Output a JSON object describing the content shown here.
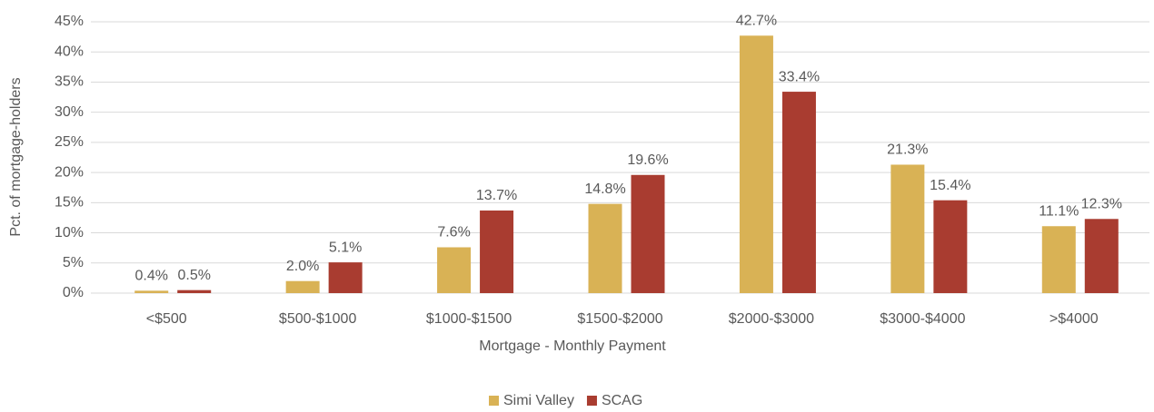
{
  "chart_data": {
    "type": "bar",
    "categories": [
      "<$500",
      "$500-$1000",
      "$1000-$1500",
      "$1500-$2000",
      "$2000-$3000",
      "$3000-$4000",
      ">$4000"
    ],
    "series": [
      {
        "name": "Simi Valley",
        "color": "#d9b255",
        "values": [
          0.4,
          2.0,
          7.6,
          14.8,
          42.7,
          21.3,
          11.1
        ],
        "value_labels": [
          "0.4%",
          "2.0%",
          "7.6%",
          "14.8%",
          "42.7%",
          "21.3%",
          "11.1%"
        ]
      },
      {
        "name": "SCAG",
        "color": "#a93c30",
        "values": [
          0.5,
          5.1,
          13.7,
          19.6,
          33.4,
          15.4,
          12.3
        ],
        "value_labels": [
          "0.5%",
          "5.1%",
          "13.7%",
          "19.6%",
          "33.4%",
          "15.4%",
          "12.3%"
        ]
      }
    ],
    "x_label": "Mortgage - Monthly Payment",
    "y_label": "Pct. of mortgage-holders",
    "ylim": [
      0,
      45
    ],
    "yticks": [
      {
        "value": 0,
        "label": "0%"
      },
      {
        "value": 5,
        "label": "5%"
      },
      {
        "value": 10,
        "label": "10%"
      },
      {
        "value": 15,
        "label": "15%"
      },
      {
        "value": 20,
        "label": "20%"
      },
      {
        "value": 25,
        "label": "25%"
      },
      {
        "value": 30,
        "label": "30%"
      },
      {
        "value": 35,
        "label": "35%"
      },
      {
        "value": 40,
        "label": "40%"
      },
      {
        "value": 45,
        "label": "45%"
      }
    ],
    "grid": true,
    "legend": "bottom"
  }
}
